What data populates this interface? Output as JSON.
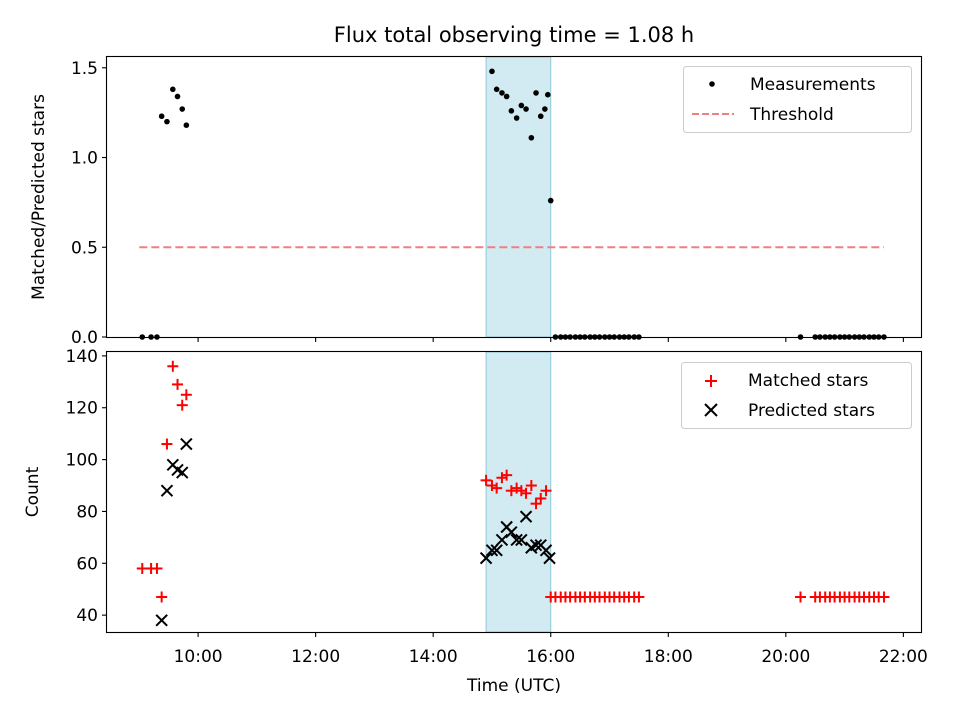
{
  "chart_data": [
    {
      "type": "scatter",
      "title": "Flux total observing time = 1.08 h",
      "ylabel": "Matched/Predicted stars",
      "xlim": [
        8.45,
        22.3
      ],
      "ylim": [
        0,
        1.56
      ],
      "yticks": [
        0.0,
        0.5,
        1.0,
        1.5
      ],
      "ytick_labels": [
        "0.0",
        "0.5",
        "1.0",
        "1.5"
      ],
      "highlight_span": {
        "x0": 14.9,
        "x1": 16.0,
        "color": "#add8e6"
      },
      "legend_position": "upper right",
      "series": [
        {
          "name": "Measurements",
          "marker": "dot",
          "color": "#000000",
          "points": [
            [
              9.05,
              0.0
            ],
            [
              9.2,
              0.0
            ],
            [
              9.3,
              0.0
            ],
            [
              9.38,
              1.23
            ],
            [
              9.47,
              1.2
            ],
            [
              9.57,
              1.38
            ],
            [
              9.65,
              1.34
            ],
            [
              9.73,
              1.27
            ],
            [
              9.8,
              1.18
            ],
            [
              15.0,
              1.48
            ],
            [
              15.08,
              1.38
            ],
            [
              15.17,
              1.36
            ],
            [
              15.25,
              1.34
            ],
            [
              15.33,
              1.26
            ],
            [
              15.42,
              1.22
            ],
            [
              15.5,
              1.29
            ],
            [
              15.58,
              1.27
            ],
            [
              15.67,
              1.11
            ],
            [
              15.75,
              1.36
            ],
            [
              15.83,
              1.23
            ],
            [
              15.9,
              1.27
            ],
            [
              15.95,
              1.35
            ],
            [
              16.0,
              0.76
            ],
            [
              16.08,
              0.0
            ],
            [
              16.17,
              0.0
            ],
            [
              16.25,
              0.0
            ],
            [
              16.33,
              0.0
            ],
            [
              16.42,
              0.0
            ],
            [
              16.5,
              0.0
            ],
            [
              16.58,
              0.0
            ],
            [
              16.67,
              0.0
            ],
            [
              16.75,
              0.0
            ],
            [
              16.83,
              0.0
            ],
            [
              16.92,
              0.0
            ],
            [
              17.0,
              0.0
            ],
            [
              17.08,
              0.0
            ],
            [
              17.17,
              0.0
            ],
            [
              17.25,
              0.0
            ],
            [
              17.33,
              0.0
            ],
            [
              17.42,
              0.0
            ],
            [
              17.5,
              0.0
            ],
            [
              20.25,
              0.0
            ],
            [
              20.5,
              0.0
            ],
            [
              20.58,
              0.0
            ],
            [
              20.67,
              0.0
            ],
            [
              20.75,
              0.0
            ],
            [
              20.83,
              0.0
            ],
            [
              20.92,
              0.0
            ],
            [
              21.0,
              0.0
            ],
            [
              21.08,
              0.0
            ],
            [
              21.17,
              0.0
            ],
            [
              21.25,
              0.0
            ],
            [
              21.33,
              0.0
            ],
            [
              21.42,
              0.0
            ],
            [
              21.5,
              0.0
            ],
            [
              21.58,
              0.0
            ],
            [
              21.67,
              0.0
            ]
          ]
        },
        {
          "name": "Threshold",
          "marker": "dashed-line",
          "color": "#f08080",
          "points": [
            [
              9.0,
              0.5
            ],
            [
              21.67,
              0.5
            ]
          ]
        }
      ]
    },
    {
      "type": "scatter",
      "xlabel": "Time (UTC)",
      "ylabel": "Count",
      "xlim": [
        8.45,
        22.3
      ],
      "ylim": [
        33.5,
        141.5
      ],
      "yticks": [
        40,
        60,
        80,
        100,
        120,
        140
      ],
      "ytick_labels": [
        "40",
        "60",
        "80",
        "100",
        "120",
        "140"
      ],
      "xticks": [
        10,
        12,
        14,
        16,
        18,
        20,
        22
      ],
      "xtick_labels": [
        "10:00",
        "12:00",
        "14:00",
        "16:00",
        "18:00",
        "20:00",
        "22:00"
      ],
      "highlight_span": {
        "x0": 14.9,
        "x1": 16.0,
        "color": "#add8e6"
      },
      "legend_position": "upper right",
      "series": [
        {
          "name": "Matched stars",
          "marker": "plus",
          "color": "#ff0000",
          "points": [
            [
              9.05,
              58
            ],
            [
              9.2,
              58
            ],
            [
              9.3,
              58
            ],
            [
              9.38,
              47
            ],
            [
              9.47,
              106
            ],
            [
              9.57,
              136
            ],
            [
              9.65,
              129
            ],
            [
              9.73,
              121
            ],
            [
              9.8,
              125
            ],
            [
              14.9,
              92
            ],
            [
              15.0,
              90
            ],
            [
              15.08,
              89
            ],
            [
              15.17,
              93
            ],
            [
              15.25,
              94
            ],
            [
              15.33,
              88
            ],
            [
              15.42,
              89
            ],
            [
              15.5,
              88
            ],
            [
              15.58,
              87
            ],
            [
              15.67,
              90
            ],
            [
              15.75,
              83
            ],
            [
              15.83,
              85
            ],
            [
              15.92,
              88
            ],
            [
              16.0,
              47
            ],
            [
              16.08,
              47
            ],
            [
              16.17,
              47
            ],
            [
              16.25,
              47
            ],
            [
              16.33,
              47
            ],
            [
              16.42,
              47
            ],
            [
              16.5,
              47
            ],
            [
              16.58,
              47
            ],
            [
              16.67,
              47
            ],
            [
              16.75,
              47
            ],
            [
              16.83,
              47
            ],
            [
              16.92,
              47
            ],
            [
              17.0,
              47
            ],
            [
              17.08,
              47
            ],
            [
              17.17,
              47
            ],
            [
              17.25,
              47
            ],
            [
              17.33,
              47
            ],
            [
              17.42,
              47
            ],
            [
              17.5,
              47
            ],
            [
              20.25,
              47
            ],
            [
              20.5,
              47
            ],
            [
              20.58,
              47
            ],
            [
              20.67,
              47
            ],
            [
              20.75,
              47
            ],
            [
              20.83,
              47
            ],
            [
              20.92,
              47
            ],
            [
              21.0,
              47
            ],
            [
              21.08,
              47
            ],
            [
              21.17,
              47
            ],
            [
              21.25,
              47
            ],
            [
              21.33,
              47
            ],
            [
              21.42,
              47
            ],
            [
              21.5,
              47
            ],
            [
              21.58,
              47
            ],
            [
              21.67,
              47
            ]
          ]
        },
        {
          "name": "Predicted stars",
          "marker": "x",
          "color": "#000000",
          "points": [
            [
              9.38,
              38
            ],
            [
              9.47,
              88
            ],
            [
              9.57,
              98
            ],
            [
              9.65,
              96
            ],
            [
              9.73,
              95
            ],
            [
              9.8,
              106
            ],
            [
              14.9,
              62
            ],
            [
              15.0,
              65
            ],
            [
              15.08,
              65
            ],
            [
              15.17,
              69
            ],
            [
              15.25,
              74
            ],
            [
              15.33,
              72
            ],
            [
              15.42,
              69
            ],
            [
              15.5,
              69
            ],
            [
              15.58,
              78
            ],
            [
              15.67,
              66
            ],
            [
              15.75,
              67
            ],
            [
              15.83,
              67
            ],
            [
              15.92,
              65
            ],
            [
              15.98,
              62
            ]
          ]
        }
      ]
    }
  ]
}
